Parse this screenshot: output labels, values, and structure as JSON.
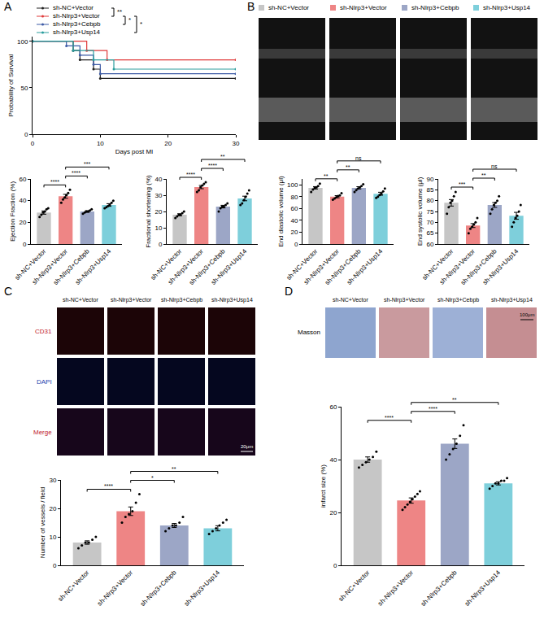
{
  "figure": {
    "panel_labels": [
      "A",
      "B",
      "C",
      "D"
    ],
    "panel_C_images": {
      "columns": [
        "sh-NC+Vector",
        "sh-Nlrp3+Vector",
        "sh-Nlrp3+Cebpb",
        "sh-Nlrp3+Usp14"
      ],
      "rows": [
        "CD31",
        "DAPI",
        "Merge"
      ],
      "scale_bar": "20μm"
    },
    "panel_D_images": {
      "columns": [
        "sh-NC+Vector",
        "sh-Nlrp3+Vector",
        "sh-Nlrp3+Cebpb",
        "sh-Nlrp3+Usp14"
      ],
      "rows": [
        "Masson"
      ],
      "scale_bar": "100μm"
    }
  },
  "chart_data": [
    {
      "type": "line",
      "x_label": "Days post MI",
      "y_label": "Probability of Survival",
      "xlim": [
        0,
        30
      ],
      "xticks": [
        0,
        10,
        20,
        30
      ],
      "ylim": [
        0,
        105
      ],
      "yticks": [
        0,
        50,
        100
      ],
      "line_style": "step",
      "marker": "circle",
      "series": [
        {
          "name": "sh-NC+Vector",
          "color": "#222222",
          "x": [
            0,
            6,
            7,
            9,
            10,
            30
          ],
          "values": [
            100,
            90,
            80,
            70,
            60,
            60
          ]
        },
        {
          "name": "sh-Nlrp3+Vector",
          "color": "#e03a3a",
          "x": [
            0,
            8,
            11,
            30
          ],
          "values": [
            100,
            90,
            80,
            80
          ]
        },
        {
          "name": "sh-Nlrp3+Cebpb",
          "color": "#3d5ba6",
          "x": [
            0,
            5,
            7,
            9,
            10,
            30
          ],
          "values": [
            100,
            95,
            85,
            75,
            65,
            65
          ]
        },
        {
          "name": "sh-Nlrp3+Usp14",
          "color": "#2a9d9d",
          "x": [
            0,
            6,
            9,
            12,
            30
          ],
          "values": [
            100,
            90,
            80,
            70,
            70
          ]
        }
      ],
      "comparisons": [
        {
          "from": 0,
          "to": 1,
          "label": "**"
        },
        {
          "from": 1,
          "to": 2,
          "label": "*"
        },
        {
          "from": 1,
          "to": 3,
          "label": "*"
        }
      ]
    },
    {
      "type": "bar",
      "y_label": "Ejection Fraction (%)",
      "categories": [
        "sh-NC+Vector",
        "sh-Nlrp3+Vector",
        "sh-Nlrp3+Cebpb",
        "sh-Nlrp3+Usp14"
      ],
      "colors": [
        "#c6c6c6",
        "#ee8585",
        "#9ca6c6",
        "#7ecfdb"
      ],
      "values": [
        29,
        44,
        30,
        36
      ],
      "errors": [
        1.5,
        1.8,
        0.7,
        1.2
      ],
      "points": [
        [
          25,
          27,
          29,
          30,
          32,
          33
        ],
        [
          38,
          41,
          43,
          45,
          47,
          50
        ],
        [
          28,
          29,
          30,
          30,
          31,
          32
        ],
        [
          33,
          34,
          35,
          36,
          38,
          40
        ]
      ],
      "ylim": [
        0,
        60
      ],
      "yticks": [
        0,
        20,
        40,
        60
      ],
      "comparisons": [
        {
          "from": 0,
          "to": 1,
          "label": "****"
        },
        {
          "from": 1,
          "to": 2,
          "label": "****"
        },
        {
          "from": 1,
          "to": 3,
          "label": "***"
        }
      ]
    },
    {
      "type": "bar",
      "y_label": "Fractional shortening (%)",
      "categories": [
        "sh-NC+Vector",
        "sh-Nlrp3+Vector",
        "sh-Nlrp3+Cebpb",
        "sh-Nlrp3+Usp14"
      ],
      "colors": [
        "#c6c6c6",
        "#ee8585",
        "#9ca6c6",
        "#7ecfdb"
      ],
      "values": [
        18,
        35,
        23,
        28
      ],
      "errors": [
        0.6,
        1,
        0.8,
        1.4
      ],
      "points": [
        [
          16,
          17,
          18,
          18,
          19,
          20
        ],
        [
          32,
          33,
          35,
          36,
          37,
          38
        ],
        [
          20,
          22,
          23,
          23,
          24,
          25
        ],
        [
          24,
          25,
          27,
          29,
          31,
          33
        ]
      ],
      "ylim": [
        0,
        40
      ],
      "yticks": [
        0,
        10,
        20,
        30,
        40
      ],
      "comparisons": [
        {
          "from": 0,
          "to": 1,
          "label": "****"
        },
        {
          "from": 1,
          "to": 2,
          "label": "****"
        },
        {
          "from": 1,
          "to": 3,
          "label": "**"
        }
      ]
    },
    {
      "type": "bar",
      "y_label": "End diastolic volume (μl)",
      "categories": [
        "sh-NC+Vector",
        "sh-Nlrp3+Vector",
        "sh-Nlrp3+Cebpb",
        "sh-Nlrp3+Usp14"
      ],
      "colors": [
        "#c6c6c6",
        "#ee8585",
        "#9ca6c6",
        "#7ecfdb"
      ],
      "values": [
        95,
        80,
        95,
        85
      ],
      "errors": [
        2,
        1.8,
        1.9,
        2.5
      ],
      "points": [
        [
          88,
          92,
          95,
          96,
          98,
          102
        ],
        [
          75,
          77,
          79,
          81,
          82,
          86
        ],
        [
          88,
          91,
          94,
          96,
          98,
          101
        ],
        [
          78,
          80,
          83,
          85,
          89,
          94
        ]
      ],
      "ylim": [
        0,
        110
      ],
      "yticks": [
        0,
        20,
        40,
        60,
        80,
        100
      ],
      "comparisons": [
        {
          "from": 0,
          "to": 1,
          "label": "**"
        },
        {
          "from": 1,
          "to": 2,
          "label": "**"
        },
        {
          "from": 1,
          "to": 3,
          "label": "ns"
        }
      ]
    },
    {
      "type": "bar",
      "y_label": "End systolic volume (μl)",
      "categories": [
        "sh-NC+Vector",
        "sh-Nlrp3+Vector",
        "sh-Nlrp3+Cebpb",
        "sh-Nlrp3+Usp14"
      ],
      "colors": [
        "#c6c6c6",
        "#ee8585",
        "#9ca6c6",
        "#7ecfdb"
      ],
      "values": [
        79,
        68.5,
        78,
        73
      ],
      "errors": [
        1.5,
        0.9,
        1.1,
        1.6
      ],
      "points": [
        [
          74,
          77,
          79,
          80,
          82,
          84
        ],
        [
          65,
          67,
          68,
          69,
          70,
          72
        ],
        [
          74,
          76,
          78,
          79,
          80,
          82
        ],
        [
          68,
          70,
          72,
          73,
          75,
          78
        ]
      ],
      "ylim": [
        60,
        90
      ],
      "yticks": [
        60,
        65,
        70,
        75,
        80,
        85,
        90
      ],
      "comparisons": [
        {
          "from": 0,
          "to": 1,
          "label": "***"
        },
        {
          "from": 1,
          "to": 2,
          "label": "**"
        },
        {
          "from": 1,
          "to": 3,
          "label": "ns"
        }
      ]
    },
    {
      "type": "bar",
      "y_label": "Number of vessels / field",
      "categories": [
        "sh-NC+Vector",
        "sh-Nlrp3+Vector",
        "sh-Nlrp3+Cebpb",
        "sh-Nlrp3+Usp14"
      ],
      "colors": [
        "#c6c6c6",
        "#ee8585",
        "#9ca6c6",
        "#7ecfdb"
      ],
      "values": [
        8,
        19,
        14,
        13
      ],
      "errors": [
        0.6,
        1.5,
        0.7,
        0.9
      ],
      "points": [
        [
          6,
          7,
          8,
          8,
          9,
          10
        ],
        [
          15,
          17,
          18,
          19,
          22,
          25
        ],
        [
          12,
          13,
          14,
          14,
          15,
          17
        ],
        [
          11,
          12,
          13,
          14,
          15,
          16
        ]
      ],
      "ylim": [
        0,
        30
      ],
      "yticks": [
        0,
        10,
        20,
        30
      ],
      "comparisons": [
        {
          "from": 0,
          "to": 1,
          "label": "****"
        },
        {
          "from": 1,
          "to": 2,
          "label": "*"
        },
        {
          "from": 1,
          "to": 3,
          "label": "**"
        }
      ]
    },
    {
      "type": "bar",
      "y_label": "infarct size (%)",
      "categories": [
        "sh-NC+Vector",
        "sh-Nlrp3+Vector",
        "sh-Nlrp3+Cebpb",
        "sh-Nlrp3+Usp14"
      ],
      "colors": [
        "#c6c6c6",
        "#ee8585",
        "#9ca6c6",
        "#7ecfdb"
      ],
      "values": [
        40,
        24.5,
        46,
        31
      ],
      "errors": [
        1,
        1,
        1.8,
        0.6
      ],
      "points": [
        [
          37,
          38,
          39,
          40,
          41,
          43
        ],
        [
          21,
          22,
          23,
          24,
          25,
          26,
          27,
          28
        ],
        [
          40,
          42,
          44,
          46,
          49,
          53
        ],
        [
          29,
          30,
          31,
          31,
          32,
          32,
          33
        ]
      ],
      "ylim": [
        0,
        60
      ],
      "yticks": [
        0,
        20,
        40,
        60
      ],
      "comparisons": [
        {
          "from": 0,
          "to": 1,
          "label": "****"
        },
        {
          "from": 1,
          "to": 2,
          "label": "****"
        },
        {
          "from": 1,
          "to": 3,
          "label": "**"
        }
      ]
    }
  ]
}
